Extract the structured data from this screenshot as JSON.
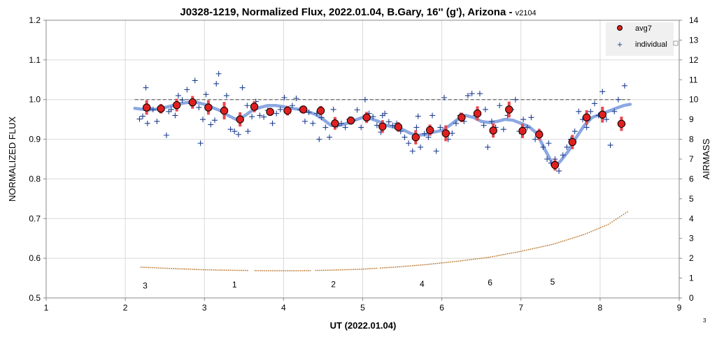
{
  "chart_data": {
    "type": "scatter",
    "title": "J0328-1219, Normalized Flux, 2022.01.04, B.Gary, 16'' (g'), Arizona - ",
    "title_version": "v2104",
    "xlabel": "UT (2022.01.04)",
    "ylabel": "NORMALIZED FLUX",
    "y2label": "AIRMASS",
    "xlim": [
      1,
      9
    ],
    "ylim": [
      0.5,
      1.2
    ],
    "y2lim": [
      0,
      14
    ],
    "x_ticks": [
      "1",
      "2",
      "3",
      "4",
      "5",
      "6",
      "7",
      "8",
      "9"
    ],
    "y_ticks": [
      "0.5",
      "0.6",
      "0.7",
      "0.8",
      "0.9",
      "1.0",
      "1.1",
      "1.2"
    ],
    "y2_ticks": [
      "0",
      "1",
      "2",
      "3",
      "4",
      "5",
      "6",
      "7",
      "8",
      "9",
      "10",
      "11",
      "12",
      "13",
      "14"
    ],
    "grid": true,
    "legend_position": "top-right",
    "reference_line": 1.0,
    "corner_note": "3",
    "series": [
      {
        "name": "avg7",
        "color": "#e02020",
        "x": [
          2.27,
          2.45,
          2.65,
          2.85,
          3.05,
          3.25,
          3.45,
          3.63,
          3.83,
          4.05,
          4.25,
          4.47,
          4.65,
          4.85,
          5.05,
          5.25,
          5.45,
          5.67,
          5.85,
          6.05,
          6.25,
          6.45,
          6.65,
          6.85,
          7.02,
          7.23,
          7.43,
          7.65,
          7.83,
          8.03,
          8.27
        ],
        "y": [
          0.98,
          0.977,
          0.986,
          0.993,
          0.98,
          0.972,
          0.95,
          0.982,
          0.969,
          0.972,
          0.975,
          0.972,
          0.94,
          0.947,
          0.955,
          0.932,
          0.931,
          0.905,
          0.923,
          0.915,
          0.955,
          0.965,
          0.922,
          0.975,
          0.921,
          0.912,
          0.835,
          0.893,
          0.955,
          0.962,
          0.939
        ],
        "err": [
          0.018,
          0.012,
          0.016,
          0.016,
          0.018,
          0.022,
          0.018,
          0.014,
          0.01,
          0.012,
          0.01,
          0.012,
          0.016,
          0.01,
          0.014,
          0.016,
          0.012,
          0.018,
          0.014,
          0.02,
          0.012,
          0.018,
          0.018,
          0.02,
          0.018,
          0.014,
          0.014,
          0.018,
          0.018,
          0.02,
          0.018
        ]
      },
      {
        "name": "individual",
        "color": "#1f3f8f",
        "x": [
          2.18,
          2.22,
          2.26,
          2.3,
          2.35,
          2.4,
          2.45,
          2.52,
          2.58,
          2.63,
          2.67,
          2.72,
          2.78,
          2.83,
          2.88,
          2.93,
          2.98,
          3.02,
          3.08,
          3.13,
          3.18,
          3.23,
          3.28,
          3.33,
          3.38,
          3.43,
          3.48,
          3.54,
          3.6,
          3.65,
          3.7,
          3.75,
          3.8,
          3.86,
          3.91,
          3.96,
          4.01,
          4.06,
          4.11,
          4.16,
          4.21,
          4.27,
          4.32,
          4.37,
          4.42,
          4.48,
          4.53,
          4.58,
          4.63,
          4.68,
          4.73,
          4.78,
          4.83,
          4.88,
          4.93,
          4.98,
          5.03,
          5.08,
          5.13,
          5.18,
          5.23,
          5.28,
          5.33,
          5.38,
          5.43,
          5.48,
          5.53,
          5.58,
          5.63,
          5.68,
          5.73,
          5.78,
          5.83,
          5.88,
          5.93,
          5.98,
          6.03,
          6.08,
          6.13,
          6.18,
          6.23,
          6.28,
          6.33,
          6.38,
          6.43,
          6.48,
          6.53,
          6.58,
          6.63,
          6.68,
          6.73,
          6.78,
          6.83,
          6.88,
          6.93,
          6.98,
          7.03,
          7.08,
          7.13,
          7.18,
          7.23,
          7.28,
          7.33,
          7.38,
          7.43,
          7.48,
          7.53,
          7.58,
          7.63,
          7.68,
          7.73,
          7.78,
          7.83,
          7.88,
          7.93,
          7.98,
          8.03,
          8.08,
          8.13,
          8.18,
          8.23,
          8.28,
          8.31,
          2.28,
          2.55,
          2.95,
          3.15,
          3.55,
          4.45,
          5.25,
          5.7,
          6.55,
          7.35
        ],
        "y": [
          0.951,
          0.958,
          1.03,
          0.979,
          0.975,
          0.945,
          0.979,
          0.91,
          0.975,
          0.96,
          1.01,
          0.999,
          1.025,
          0.99,
          1.048,
          0.98,
          0.95,
          1.013,
          0.937,
          0.948,
          1.065,
          0.97,
          1.01,
          0.925,
          0.92,
          0.912,
          1.03,
          0.985,
          0.957,
          0.995,
          0.96,
          0.956,
          0.973,
          0.94,
          0.965,
          0.975,
          1.005,
          0.972,
          0.985,
          1.003,
          0.975,
          0.945,
          0.968,
          0.94,
          0.965,
          0.955,
          0.93,
          0.905,
          0.975,
          0.935,
          0.94,
          0.93,
          0.95,
          0.948,
          0.974,
          0.93,
          1.0,
          0.965,
          0.957,
          0.935,
          0.918,
          0.965,
          0.944,
          0.935,
          0.94,
          0.92,
          0.905,
          0.89,
          0.87,
          0.93,
          0.88,
          0.914,
          0.905,
          0.96,
          0.87,
          0.93,
          1.005,
          0.9,
          0.915,
          0.94,
          0.96,
          0.945,
          1.01,
          1.015,
          0.96,
          1.015,
          0.935,
          0.88,
          0.945,
          0.93,
          0.985,
          0.925,
          0.96,
          0.975,
          1.0,
          0.92,
          0.95,
          0.93,
          0.955,
          0.9,
          0.92,
          0.88,
          0.85,
          0.84,
          0.85,
          0.82,
          0.86,
          0.88,
          0.9,
          0.92,
          0.97,
          0.95,
          0.93,
          0.97,
          0.99,
          0.96,
          1.02,
          0.95,
          0.885,
          0.97,
          1.0,
          0.935,
          1.035,
          0.94,
          0.97,
          0.89,
          1.04,
          0.92,
          0.9,
          0.96,
          0.958,
          0.975,
          0.89
        ]
      },
      {
        "name": "model",
        "color": "#7f9fdf",
        "x": [
          2.12,
          2.2,
          2.3,
          2.4,
          2.5,
          2.6,
          2.7,
          2.8,
          2.9,
          3.0,
          3.1,
          3.2,
          3.3,
          3.4,
          3.5,
          3.6,
          3.7,
          3.8,
          3.9,
          4.0,
          4.1,
          4.2,
          4.3,
          4.4,
          4.5,
          4.6,
          4.7,
          4.8,
          4.9,
          5.0,
          5.1,
          5.2,
          5.3,
          5.4,
          5.5,
          5.6,
          5.7,
          5.8,
          5.9,
          6.0,
          6.1,
          6.2,
          6.3,
          6.4,
          6.5,
          6.6,
          6.7,
          6.8,
          6.9,
          7.0,
          7.1,
          7.2,
          7.3,
          7.4,
          7.45,
          7.5,
          7.6,
          7.7,
          7.8,
          7.9,
          8.0,
          8.1,
          8.2,
          8.3,
          8.38
        ],
        "y": [
          0.978,
          0.976,
          0.974,
          0.976,
          0.98,
          0.985,
          0.99,
          0.993,
          0.993,
          0.988,
          0.98,
          0.972,
          0.96,
          0.95,
          0.958,
          0.972,
          0.98,
          0.985,
          0.985,
          0.982,
          0.978,
          0.975,
          0.97,
          0.963,
          0.95,
          0.935,
          0.935,
          0.94,
          0.948,
          0.955,
          0.952,
          0.945,
          0.935,
          0.93,
          0.925,
          0.915,
          0.91,
          0.912,
          0.918,
          0.922,
          0.935,
          0.95,
          0.96,
          0.955,
          0.945,
          0.942,
          0.945,
          0.95,
          0.948,
          0.94,
          0.932,
          0.915,
          0.875,
          0.838,
          0.835,
          0.845,
          0.87,
          0.905,
          0.935,
          0.955,
          0.963,
          0.97,
          0.978,
          0.985,
          0.988
        ]
      },
      {
        "name": "airmass",
        "color": "#b8742a",
        "axis": "y2",
        "x_start": 2.2,
        "x_end": 8.35,
        "airmass_points": [
          [
            2.2,
            1.55
          ],
          [
            2.6,
            1.48
          ],
          [
            3.0,
            1.42
          ],
          [
            3.4,
            1.39
          ],
          [
            3.8,
            1.37
          ],
          [
            4.2,
            1.37
          ],
          [
            4.6,
            1.4
          ],
          [
            5.0,
            1.45
          ],
          [
            5.4,
            1.55
          ],
          [
            5.8,
            1.68
          ],
          [
            6.2,
            1.85
          ],
          [
            6.6,
            2.05
          ],
          [
            7.0,
            2.35
          ],
          [
            7.4,
            2.7
          ],
          [
            7.8,
            3.2
          ],
          [
            8.1,
            3.7
          ],
          [
            8.35,
            4.35
          ]
        ]
      }
    ],
    "annotations": [
      {
        "text": "3",
        "x": 2.25,
        "y": 0.524
      },
      {
        "text": "1",
        "x": 3.38,
        "y": 0.526
      },
      {
        "text": "2",
        "x": 4.63,
        "y": 0.527
      },
      {
        "text": "4",
        "x": 5.75,
        "y": 0.528
      },
      {
        "text": "6",
        "x": 6.61,
        "y": 0.532
      },
      {
        "text": "5",
        "x": 7.4,
        "y": 0.533
      }
    ]
  }
}
